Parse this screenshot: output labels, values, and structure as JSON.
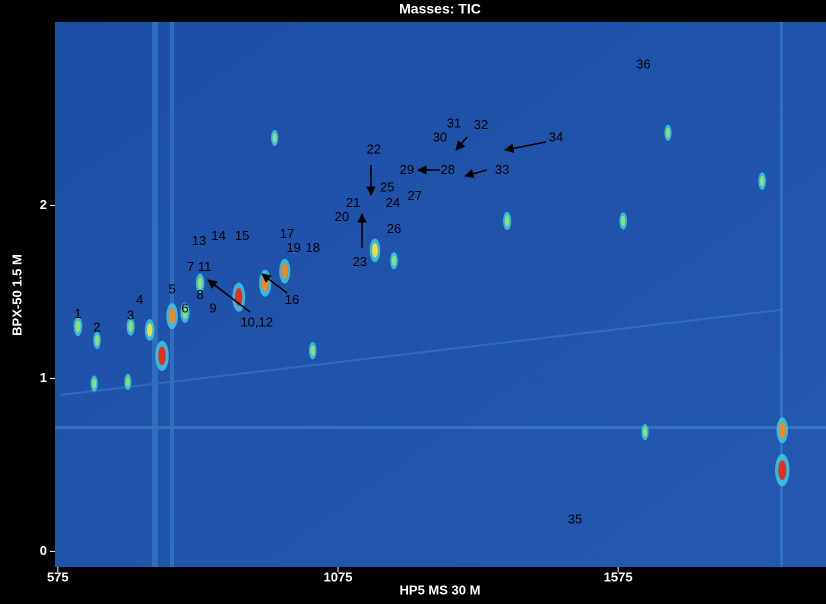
{
  "chart_data": {
    "type": "scatter",
    "title": "Masses: TIC",
    "x_label": "HP5 MS 30 M",
    "y_label": "BPX-50 1.5 M",
    "xlim": [
      570,
      1946
    ],
    "ylim": [
      -0.09,
      3.06
    ],
    "xticks": [
      575,
      1075,
      1575
    ],
    "yticks": [
      0,
      1,
      2
    ],
    "x": [
      611,
      645,
      705,
      739,
      761,
      779,
      802,
      829,
      898,
      945,
      980,
      1141,
      1175,
      1377,
      1584,
      1832,
      1868,
      1868,
      1623,
      962,
      1664,
      1030,
      700,
      640
    ],
    "values": [
      1.3,
      1.22,
      1.3,
      1.28,
      1.13,
      1.36,
      1.38,
      1.55,
      1.47,
      1.55,
      1.62,
      1.74,
      1.68,
      1.91,
      1.91,
      2.14,
      0.47,
      0.7,
      0.69,
      2.39,
      2.42,
      1.16,
      0.98,
      0.97
    ],
    "intensity": [
      0.4,
      0.3,
      0.35,
      0.5,
      0.9,
      0.7,
      0.45,
      0.4,
      0.85,
      0.75,
      0.65,
      0.6,
      0.3,
      0.35,
      0.3,
      0.3,
      1.0,
      0.7,
      0.25,
      0.25,
      0.25,
      0.3,
      0.25,
      0.25
    ],
    "annotations": [
      {
        "text": "1",
        "x": 611,
        "y": 1.37
      },
      {
        "text": "2",
        "x": 645,
        "y": 1.29
      },
      {
        "text": "3",
        "x": 705,
        "y": 1.36
      },
      {
        "text": "4",
        "x": 721,
        "y": 1.45
      },
      {
        "text": "5",
        "x": 779,
        "y": 1.51
      },
      {
        "text": "6",
        "x": 802,
        "y": 1.4
      },
      {
        "text": "7",
        "x": 812,
        "y": 1.64
      },
      {
        "text": "11",
        "x": 837,
        "y": 1.64
      },
      {
        "text": "8",
        "x": 829,
        "y": 1.48
      },
      {
        "text": "9",
        "x": 852,
        "y": 1.4
      },
      {
        "text": "10,12",
        "x": 930,
        "y": 1.32
      },
      {
        "text": "13",
        "x": 827,
        "y": 1.79
      },
      {
        "text": "14",
        "x": 862,
        "y": 1.82
      },
      {
        "text": "15",
        "x": 904,
        "y": 1.82
      },
      {
        "text": "16",
        "x": 993,
        "y": 1.45
      },
      {
        "text": "17",
        "x": 984,
        "y": 1.83
      },
      {
        "text": "18",
        "x": 1030,
        "y": 1.75
      },
      {
        "text": "19",
        "x": 996,
        "y": 1.75
      },
      {
        "text": "20",
        "x": 1082,
        "y": 1.93
      },
      {
        "text": "21",
        "x": 1102,
        "y": 2.01
      },
      {
        "text": "22",
        "x": 1139,
        "y": 2.32
      },
      {
        "text": "23",
        "x": 1114,
        "y": 1.67
      },
      {
        "text": "24",
        "x": 1173,
        "y": 2.01
      },
      {
        "text": "25",
        "x": 1163,
        "y": 2.1
      },
      {
        "text": "26",
        "x": 1175,
        "y": 1.86
      },
      {
        "text": "27",
        "x": 1212,
        "y": 2.05
      },
      {
        "text": "28",
        "x": 1271,
        "y": 2.2
      },
      {
        "text": "29",
        "x": 1198,
        "y": 2.2
      },
      {
        "text": "30",
        "x": 1257,
        "y": 2.39
      },
      {
        "text": "31",
        "x": 1282,
        "y": 2.47
      },
      {
        "text": "32",
        "x": 1330,
        "y": 2.46
      },
      {
        "text": "33",
        "x": 1368,
        "y": 2.2
      },
      {
        "text": "34",
        "x": 1464,
        "y": 2.39
      },
      {
        "text": "35",
        "x": 1498,
        "y": 0.18
      },
      {
        "text": "36",
        "x": 1620,
        "y": 2.81
      }
    ]
  }
}
